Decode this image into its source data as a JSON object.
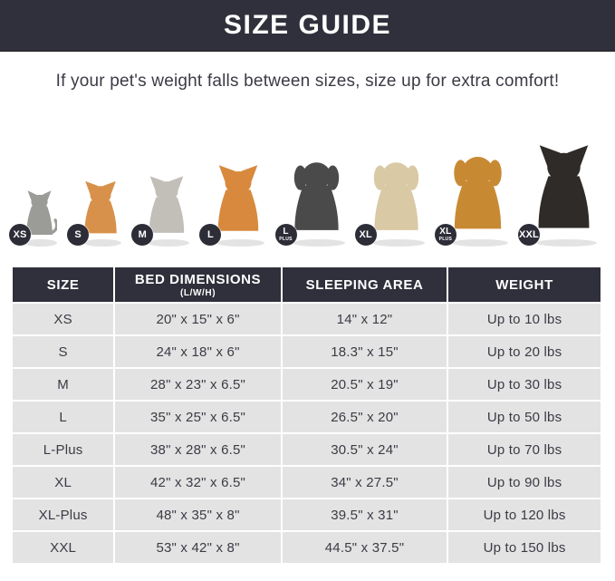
{
  "header": {
    "title": "SIZE GUIDE"
  },
  "subtitle": "If your pet's weight falls between sizes, size up for extra comfort!",
  "pets": [
    {
      "name": "cat",
      "badge": "XS",
      "badge_sub": "",
      "shape": "cat",
      "color": "#9b9b97",
      "height": 68
    },
    {
      "name": "pomeranian",
      "badge": "S",
      "badge_sub": "",
      "shape": "dog-pointy",
      "color": "#d8914a",
      "height": 80
    },
    {
      "name": "french-bulldog",
      "badge": "M",
      "badge_sub": "",
      "shape": "dog-pointy",
      "color": "#c2bfb9",
      "height": 86
    },
    {
      "name": "shiba-inu",
      "badge": "L",
      "badge_sub": "",
      "shape": "dog-pointy",
      "color": "#d8893d",
      "height": 100
    },
    {
      "name": "border-collie",
      "badge": "L",
      "badge_sub": "PLUS",
      "shape": "dog-floppy",
      "color": "#4a4a4a",
      "height": 108
    },
    {
      "name": "labrador",
      "badge": "XL",
      "badge_sub": "",
      "shape": "dog-floppy",
      "color": "#d9c9a4",
      "height": 108
    },
    {
      "name": "golden-retriever",
      "badge": "XL",
      "badge_sub": "PLUS",
      "shape": "dog-floppy",
      "color": "#c78a33",
      "height": 116
    },
    {
      "name": "doberman",
      "badge": "XXL",
      "badge_sub": "",
      "shape": "dog-pointy",
      "color": "#2e2b28",
      "height": 125
    }
  ],
  "table": {
    "columns": [
      {
        "label": "SIZE",
        "sub": ""
      },
      {
        "label": "BED DIMENSIONS",
        "sub": "(L/W/H)"
      },
      {
        "label": "SLEEPING AREA",
        "sub": ""
      },
      {
        "label": "WEIGHT",
        "sub": ""
      }
    ],
    "rows": [
      {
        "size": "XS",
        "bed_dimensions": "20\" x 15\" x 6\"",
        "sleeping_area": "14\" x 12\"",
        "weight": "Up to 10 lbs"
      },
      {
        "size": "S",
        "bed_dimensions": "24\" x 18\" x 6\"",
        "sleeping_area": "18.3\" x 15\"",
        "weight": "Up to 20 lbs"
      },
      {
        "size": "M",
        "bed_dimensions": "28\" x 23\" x 6.5\"",
        "sleeping_area": "20.5\" x 19\"",
        "weight": "Up to 30 lbs"
      },
      {
        "size": "L",
        "bed_dimensions": "35\" x 25\" x 6.5\"",
        "sleeping_area": "26.5\" x 20\"",
        "weight": "Up to 50 lbs"
      },
      {
        "size": "L-Plus",
        "bed_dimensions": "38\" x 28\" x 6.5\"",
        "sleeping_area": "30.5\" x 24\"",
        "weight": "Up to 70 lbs"
      },
      {
        "size": "XL",
        "bed_dimensions": "42\" x 32\" x 6.5\"",
        "sleeping_area": "34\" x 27.5\"",
        "weight": "Up to 90 lbs"
      },
      {
        "size": "XL-Plus",
        "bed_dimensions": "48\" x 35\" x 8\"",
        "sleeping_area": "39.5\" x 31\"",
        "weight": "Up to 120 lbs"
      },
      {
        "size": "XXL",
        "bed_dimensions": "53\" x 42\" x 8\"",
        "sleeping_area": "44.5\" x 37.5\"",
        "weight": "Up to 150 lbs"
      }
    ]
  },
  "colors": {
    "header_bg": "#30303c",
    "row_bg": "#e3e3e3",
    "text": "#3b3b45",
    "badge_bg": "#2d2d38"
  }
}
